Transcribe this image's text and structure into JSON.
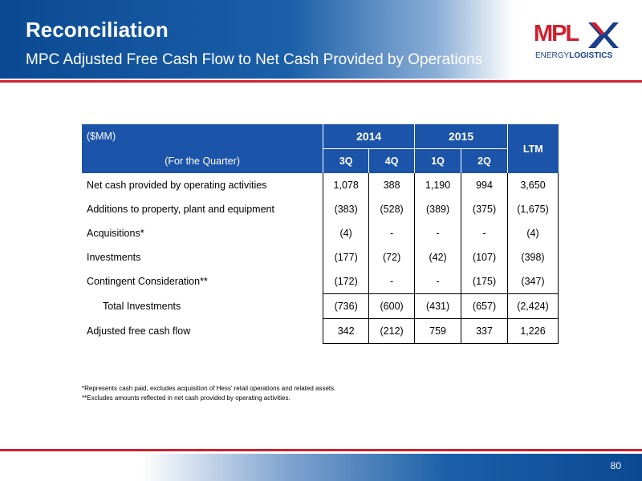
{
  "header": {
    "title": "Reconciliation",
    "subtitle": "MPC Adjusted Free Cash Flow to Net Cash Provided by Operations"
  },
  "logo": {
    "word": "MPL",
    "sub_light": "ENERGY",
    "sub_bold": "LOGISTICS",
    "colors": {
      "red": "#d0202e",
      "blue": "#1a3f8a"
    }
  },
  "table": {
    "unit_label": "($MM)",
    "period_label": "(For the Quarter)",
    "years": [
      "2014",
      "2015"
    ],
    "quarters": [
      "3Q",
      "4Q",
      "1Q",
      "2Q"
    ],
    "ltm_label": "LTM",
    "rows": [
      {
        "label": "Net cash provided by operating activities",
        "values": [
          "1,078",
          "388",
          "1,190",
          "994",
          "3,650"
        ]
      },
      {
        "label": "Additions to property, plant and equipment",
        "values": [
          "(383)",
          "(528)",
          "(389)",
          "(375)",
          "(1,675)"
        ]
      },
      {
        "label": "Acquisitions*",
        "values": [
          "(4)",
          "-",
          "-",
          "-",
          "(4)"
        ]
      },
      {
        "label": "Investments",
        "values": [
          "(177)",
          "(72)",
          "(42)",
          "(107)",
          "(398)"
        ]
      },
      {
        "label": "Contingent Consideration**",
        "values": [
          "(172)",
          "-",
          "-",
          "(175)",
          "(347)"
        ]
      },
      {
        "label": "Total Investments",
        "values": [
          "(736)",
          "(600)",
          "(431)",
          "(657)",
          "(2,424)"
        ]
      },
      {
        "label": "Adjusted free cash flow",
        "values": [
          "342",
          "(212)",
          "759",
          "337",
          "1,226"
        ]
      }
    ]
  },
  "footnotes": [
    "*Represents cash paid, excludes acquisition of Hess' retail operations and related assets.",
    "**Excludes amounts reflected in net cash provided by operating activities."
  ],
  "footer": {
    "page_number": "80"
  },
  "colors": {
    "header_blue": "#0b4a93",
    "table_header_blue": "#1b54a8",
    "accent_red": "#d0202e"
  }
}
